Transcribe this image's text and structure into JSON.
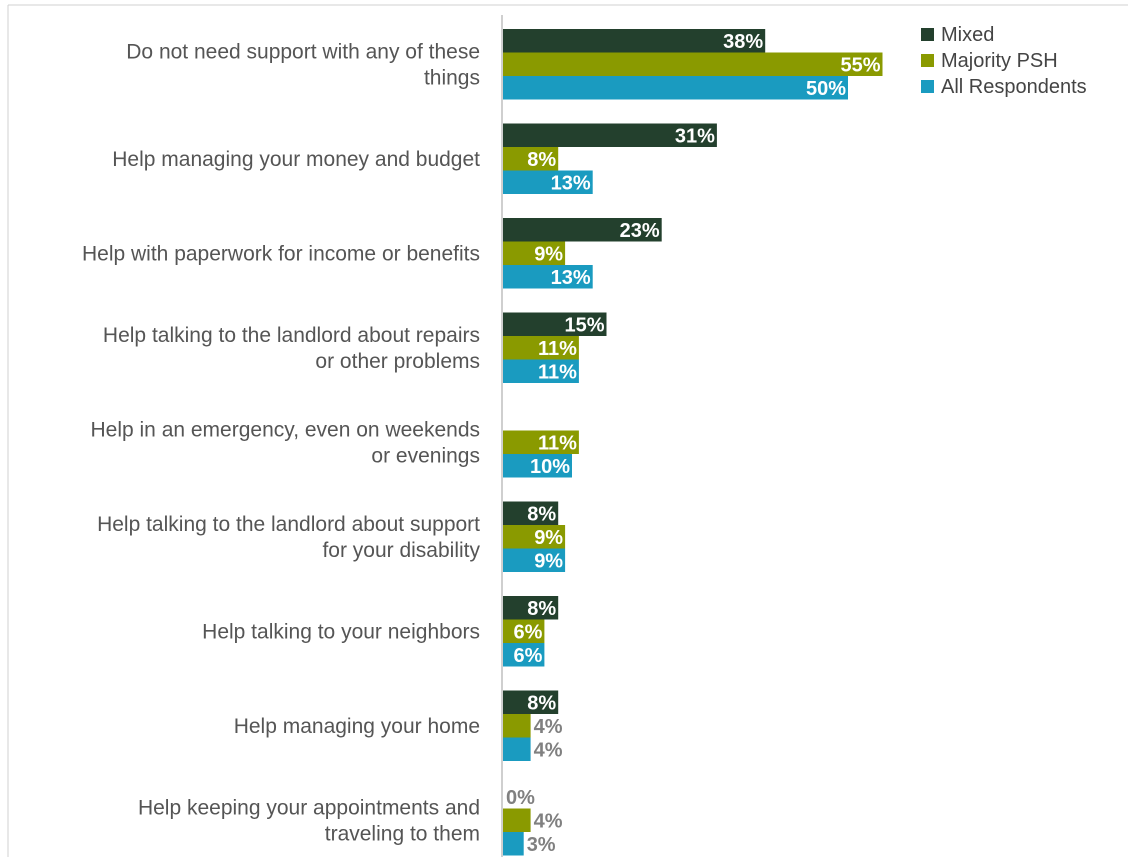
{
  "chart_data": {
    "type": "bar",
    "orientation": "horizontal",
    "categories": [
      [
        "Do not need support with any of these",
        "things"
      ],
      [
        "Help managing your money and budget"
      ],
      [
        "Help with paperwork for income or benefits"
      ],
      [
        "Help talking to the landlord about repairs",
        "or other problems"
      ],
      [
        "Help in an emergency,  even on weekends",
        "or evenings"
      ],
      [
        "Help talking to the landlord about support",
        "for your disability"
      ],
      [
        "Help talking to your neighbors"
      ],
      [
        "Help managing your home"
      ],
      [
        "Help keeping your appointments and",
        "traveling to them"
      ]
    ],
    "series": [
      {
        "name": "Mixed",
        "color": "#23402d",
        "values": [
          38,
          31,
          23,
          15,
          null,
          8,
          8,
          8,
          0
        ],
        "labels": [
          "38%",
          "31%",
          "23%",
          "15%",
          "",
          "8%",
          "8%",
          "8%",
          "0%"
        ]
      },
      {
        "name": "Majority PSH",
        "color": "#8a9a00",
        "values": [
          55,
          8,
          9,
          11,
          11,
          9,
          6,
          4,
          4
        ],
        "labels": [
          "55%",
          "8%",
          "9%",
          "11%",
          "11%",
          "9%",
          "6%",
          "4%",
          "4%"
        ]
      },
      {
        "name": "All Respondents",
        "color": "#1a9bc0",
        "values": [
          50,
          13,
          13,
          11,
          10,
          9,
          6,
          4,
          3
        ],
        "labels": [
          "50%",
          "13%",
          "13%",
          "11%",
          "10%",
          "9%",
          "6%",
          "4%",
          "3%"
        ]
      }
    ],
    "xlim": [
      0,
      90
    ],
    "legend_position": "top-right",
    "grid": false,
    "title": "",
    "xlabel": "",
    "ylabel": ""
  }
}
